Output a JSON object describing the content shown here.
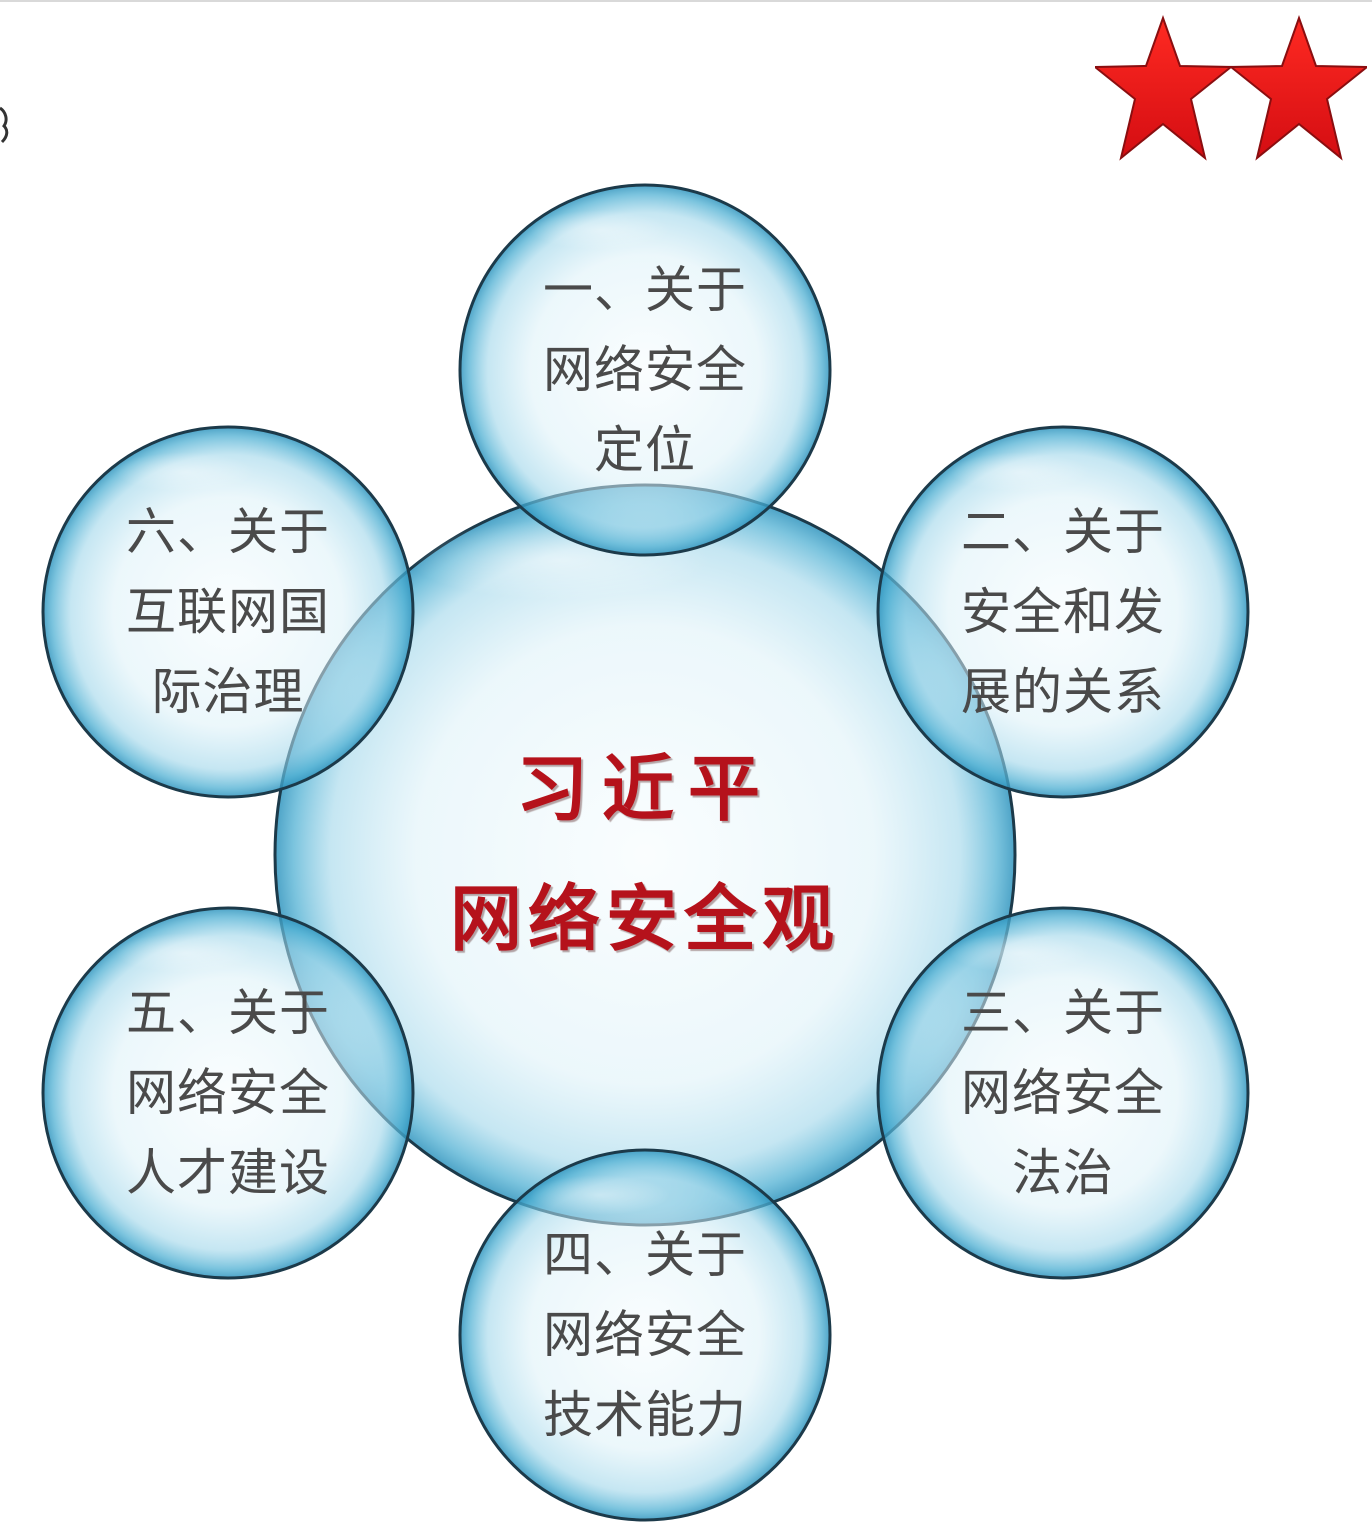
{
  "diagram": {
    "center": {
      "line1": "习近平",
      "line2": "网络安全观"
    },
    "topics": [
      {
        "lines": [
          "一、关于",
          "网络安全",
          "定位"
        ]
      },
      {
        "lines": [
          "二、关于",
          "安全和发",
          "展的关系"
        ]
      },
      {
        "lines": [
          "三、关于",
          "网络安全",
          "法治"
        ]
      },
      {
        "lines": [
          "四、关于",
          "网络安全",
          "技术能力"
        ]
      },
      {
        "lines": [
          "五、关于",
          "网络安全",
          "人才建设"
        ]
      },
      {
        "lines": [
          "六、关于",
          "互联网国",
          "际治理"
        ]
      }
    ]
  },
  "decorations": {
    "star_icon": "red-star-icon",
    "star_count": 2,
    "star_color": "#e3121b"
  },
  "colors": {
    "bubble_fill": "#dff2f9",
    "bubble_edge": "#5fb8d6",
    "bubble_outline": "#1c3a4a",
    "title_color": "#b5121b",
    "text_color": "#4a4a4a"
  }
}
